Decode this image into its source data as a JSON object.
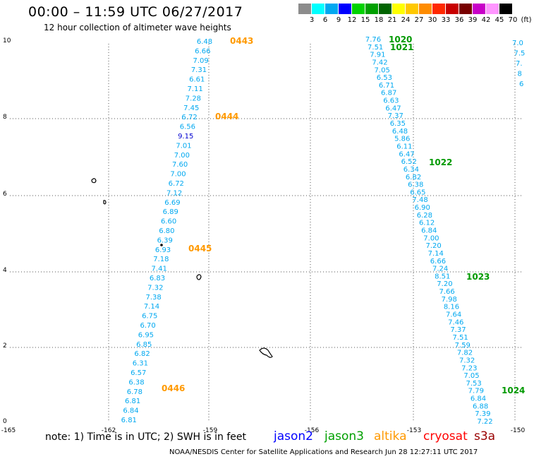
{
  "title": "00:00 – 11:59 UTC 06/27/2017",
  "subtitle": "12 hour collection of altimeter wave heights",
  "color_scale": {
    "labels": [
      "3",
      "6",
      "9",
      "12",
      "15",
      "18",
      "21",
      "24",
      "27",
      "30",
      "33",
      "36",
      "39",
      "42",
      "45",
      "70",
      "(ft)"
    ],
    "colors": [
      "#8c8c8c",
      "#00ffff",
      "#00a8f0",
      "#0000ff",
      "#00d200",
      "#00a000",
      "#006400",
      "#ffff00",
      "#ffc800",
      "#ff8c00",
      "#ff2800",
      "#c80000",
      "#780000",
      "#c800c8",
      "#ff96ff",
      "#000000"
    ]
  },
  "axes": {
    "x_labels": [
      "-165",
      "-162",
      "-159",
      "-156",
      "-153",
      "-150"
    ],
    "y_labels": [
      "0",
      "2",
      "4",
      "6",
      "8",
      "10"
    ]
  },
  "passes": [
    {
      "label": "0443",
      "color": "#ff9900"
    },
    {
      "label": "0444",
      "color": "#ff9900"
    },
    {
      "label": "0445",
      "color": "#ff9900"
    },
    {
      "label": "0446",
      "color": "#ff9900"
    },
    {
      "label": "1020",
      "color": "#009900"
    },
    {
      "label": "1021",
      "color": "#009900"
    },
    {
      "label": "1022",
      "color": "#009900"
    },
    {
      "label": "1023",
      "color": "#009900"
    },
    {
      "label": "1024",
      "color": "#009900"
    }
  ],
  "track1_values": [
    "6.48",
    "6.66",
    "7.09",
    "7.31",
    "6.61",
    "7.11",
    "7.28",
    "7.45",
    "6.72",
    "6.56",
    "9.15",
    "7.01",
    "7.00",
    "7.60",
    "7.00",
    "6.72",
    "7.12",
    "6.69",
    "6.89",
    "6.60",
    "6.80",
    "6.39",
    "6.93",
    "7.18",
    "7.41",
    "6.83",
    "7.32",
    "7.38",
    "7.14",
    "6.75",
    "6.70",
    "6.95",
    "6.85",
    "6.82",
    "6.31",
    "6.57",
    "6.38",
    "6.78",
    "6.81",
    "6.84",
    "6.81"
  ],
  "track2_values": [
    "7.76",
    "7.51",
    "7.91",
    "7.42",
    "7.05",
    "6.53",
    "6.71",
    "6.87",
    "6.63",
    "6.47",
    "7.37",
    "6.35",
    "6.48",
    "5.86",
    "6.11",
    "6.47",
    "6.52",
    "6.34",
    "6.82",
    "6.38",
    "6.65",
    "7.48",
    "6.90",
    "6.28",
    "6.12",
    "6.84",
    "7.00",
    "7.20",
    "7.14",
    "6.66",
    "7.24",
    "8.51",
    "7.20",
    "7.66",
    "7.98",
    "8.16",
    "7.64",
    "7.46",
    "7.37",
    "7.51",
    "7.59",
    "7.82",
    "7.32",
    "7.23",
    "7.05",
    "7.53",
    "7.79",
    "6.84",
    "6.88",
    "7.39",
    "7.22"
  ],
  "track3_values": [
    "7.0",
    "7.5",
    "7.",
    "8",
    "6"
  ],
  "note": "note: 1) Time is in UTC; 2) SWH is in feet",
  "satellites": [
    {
      "name": "jason2",
      "color": "#0000ff"
    },
    {
      "name": "jason3",
      "color": "#00a000"
    },
    {
      "name": "altika",
      "color": "#ff9900"
    },
    {
      "name": "cryosat",
      "color": "#ff0000"
    },
    {
      "name": "s3a",
      "color": "#990000"
    }
  ],
  "credit": "NOAA/NESDIS Center for Satellite Applications and Research   Jun 28 12:27:11 UTC 2017"
}
